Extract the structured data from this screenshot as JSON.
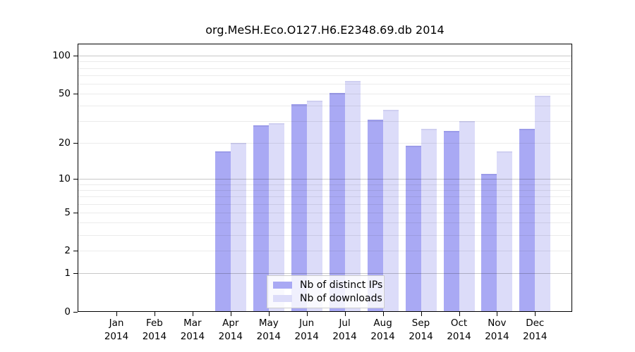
{
  "chart_data": {
    "type": "bar",
    "title": "org.MeSH.Eco.O127.H6.E2348.69.db 2014",
    "categories": [
      "Jan",
      "Feb",
      "Mar",
      "Apr",
      "May",
      "Jun",
      "Jul",
      "Aug",
      "Sep",
      "Oct",
      "Nov",
      "Dec"
    ],
    "category_year": "2014",
    "series": [
      {
        "name": "Nb of distinct IPs",
        "color": "#a9a9f4",
        "values": [
          0,
          0,
          0,
          17,
          28,
          41,
          51,
          31,
          19,
          25,
          11,
          26
        ]
      },
      {
        "name": "Nb of downloads",
        "color": "#dcdcf9",
        "values": [
          0,
          0,
          0,
          20,
          29,
          44,
          63,
          37,
          26,
          30,
          17,
          48
        ]
      }
    ],
    "yscale": "log1p",
    "ylim": [
      0,
      125
    ],
    "yticks": [
      0,
      1,
      2,
      5,
      10,
      20,
      50,
      100
    ],
    "gridlines": {
      "major": [
        1,
        10,
        100
      ],
      "minor": [
        2,
        3,
        4,
        5,
        6,
        7,
        8,
        9,
        20,
        30,
        40,
        50,
        60,
        70,
        80,
        90
      ]
    },
    "grid": true,
    "legend_position": "bottom-center"
  },
  "colors": {
    "major_gridline": "#c8c8c8",
    "minor_gridline": "#ebebeb",
    "axis": "#000000",
    "background": "#ffffff",
    "legend_border": "#cccccc"
  }
}
